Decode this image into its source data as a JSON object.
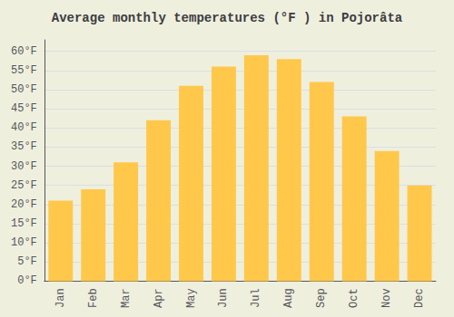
{
  "chart_data": {
    "type": "bar",
    "title": "Average monthly temperatures (°F ) in Pojorâta",
    "categories": [
      "Jan",
      "Feb",
      "Mar",
      "Apr",
      "May",
      "Jun",
      "Jul",
      "Aug",
      "Sep",
      "Oct",
      "Nov",
      "Dec"
    ],
    "values": [
      21,
      24,
      31,
      42,
      51,
      56,
      59,
      58,
      52,
      43,
      34,
      25
    ],
    "color": "#FFC84A",
    "ylim": [
      0,
      63
    ],
    "yticks": [
      {
        "value": 0,
        "label": "0°F"
      },
      {
        "value": 5,
        "label": "5°F"
      },
      {
        "value": 10,
        "label": "10°F"
      },
      {
        "value": 15,
        "label": "15°F"
      },
      {
        "value": 20,
        "label": "20°F"
      },
      {
        "value": 25,
        "label": "25°F"
      },
      {
        "value": 30,
        "label": "30°F"
      },
      {
        "value": 35,
        "label": "35°F"
      },
      {
        "value": 40,
        "label": "40°F"
      },
      {
        "value": 45,
        "label": "45°F"
      },
      {
        "value": 50,
        "label": "50°F"
      },
      {
        "value": 55,
        "label": "55°F"
      },
      {
        "value": 60,
        "label": "60°F"
      }
    ],
    "grid": true
  }
}
